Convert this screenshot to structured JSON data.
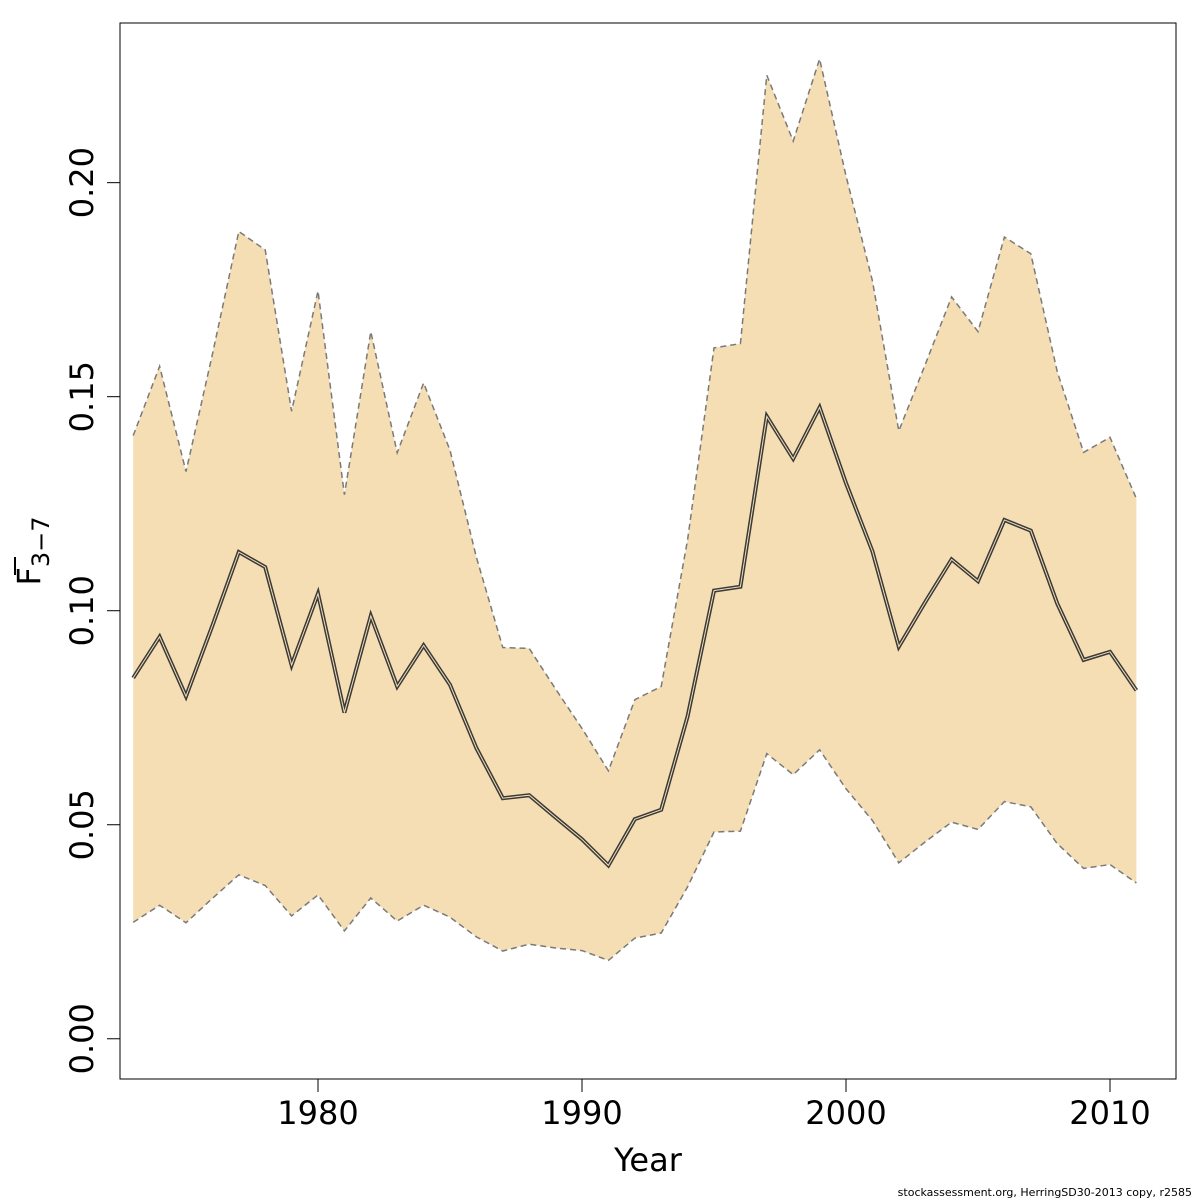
{
  "chart_data": {
    "type": "area",
    "xlabel": "Year",
    "ylabel_base": "F",
    "ylabel_sub": "3−7",
    "xlim": [
      1972.5,
      2012.5
    ],
    "ylim": [
      -0.0094,
      0.2373
    ],
    "x_ticks": [
      1980,
      1990,
      2000,
      2010
    ],
    "y_ticks": [
      0.0,
      0.05,
      0.1,
      0.15,
      0.2
    ],
    "y_tick_labels": [
      "0.00",
      "0.05",
      "0.10",
      "0.15",
      "0.20"
    ],
    "grid": false,
    "colors": {
      "band": "#f5deb3",
      "bound_line": "#7a7a7a",
      "mean_line": "#3a3a3a"
    },
    "years": [
      1973,
      1974,
      1975,
      1976,
      1977,
      1978,
      1979,
      1980,
      1981,
      1982,
      1983,
      1984,
      1985,
      1986,
      1987,
      1988,
      1989,
      1990,
      1991,
      1992,
      1993,
      1994,
      1995,
      1996,
      1997,
      1998,
      1999,
      2000,
      2001,
      2002,
      2003,
      2004,
      2005,
      2006,
      2007,
      2008,
      2009,
      2010,
      2011
    ],
    "series": [
      {
        "name": "F",
        "values": [
          0.0843,
          0.0939,
          0.08,
          0.0965,
          0.1137,
          0.1102,
          0.0873,
          0.104,
          0.0762,
          0.0988,
          0.0823,
          0.0919,
          0.0827,
          0.0679,
          0.0562,
          0.0569,
          0.0517,
          0.0466,
          0.0405,
          0.0513,
          0.0535,
          0.0753,
          0.1047,
          0.1056,
          0.1454,
          0.1355,
          0.1475,
          0.1298,
          0.1139,
          0.0916,
          0.102,
          0.112,
          0.1069,
          0.1212,
          0.1187,
          0.1017,
          0.0885,
          0.0904,
          0.0814
        ]
      },
      {
        "name": "upper",
        "values": [
          0.1409,
          0.1571,
          0.1325,
          0.1599,
          0.1886,
          0.1843,
          0.1466,
          0.1747,
          0.1271,
          0.1652,
          0.1369,
          0.1532,
          0.1375,
          0.1125,
          0.0914,
          0.0912,
          0.0817,
          0.0725,
          0.0626,
          0.0792,
          0.0823,
          0.1166,
          0.1614,
          0.1624,
          0.2251,
          0.2097,
          0.2289,
          0.2016,
          0.1771,
          0.142,
          0.1575,
          0.1733,
          0.1652,
          0.1873,
          0.1834,
          0.1559,
          0.137,
          0.1405,
          0.1262
        ]
      },
      {
        "name": "lower",
        "values": [
          0.0272,
          0.0312,
          0.0271,
          0.0328,
          0.0383,
          0.0358,
          0.0287,
          0.0336,
          0.0252,
          0.0329,
          0.0275,
          0.0312,
          0.0284,
          0.0238,
          0.0205,
          0.0221,
          0.0212,
          0.0206,
          0.0183,
          0.0235,
          0.0247,
          0.0355,
          0.0483,
          0.0485,
          0.0666,
          0.0617,
          0.0675,
          0.0584,
          0.051,
          0.0411,
          0.046,
          0.0506,
          0.0489,
          0.0554,
          0.0542,
          0.0456,
          0.0398,
          0.0407,
          0.0364
        ]
      }
    ]
  },
  "footer": "stockassessment.org, HerringSD30-2013 copy, r2585"
}
